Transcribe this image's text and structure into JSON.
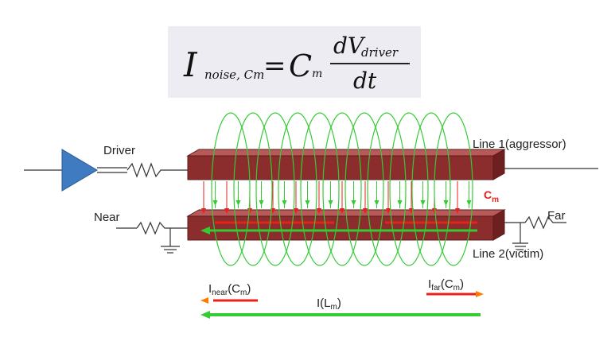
{
  "formula": {
    "lhs_symbol": "I",
    "lhs_subscript": "noise, Cm",
    "equals": "=",
    "coef_symbol": "C",
    "coef_subscript": "m",
    "numerator": "dV",
    "numerator_subscript": "driver",
    "denominator": "dt"
  },
  "labels": {
    "driver": "Driver",
    "near": "Near",
    "far": "Far",
    "line1": "Line 1(aggressor)",
    "line2": "Line 2(victim)",
    "cm_main": "C",
    "cm_sub": "m",
    "inear_main": "I",
    "inear_sub": "near",
    "inear_paren": "(C",
    "inear_paren_sub": "m",
    "inear_close": ")",
    "ifar_main": "I",
    "ifar_sub": "far",
    "ifar_paren": "(C",
    "ifar_paren_sub": "m",
    "ifar_close": ")",
    "ilm_main": "I(L",
    "ilm_sub": "m",
    "ilm_close": ")"
  },
  "colors": {
    "aggressor_line": "#8c2d2d",
    "victim_line": "#8c2d2d",
    "driver_buffer": "#3e7bc0",
    "magnetic_loops": "#33cc33",
    "capacitive_current": "#e8201a"
  }
}
